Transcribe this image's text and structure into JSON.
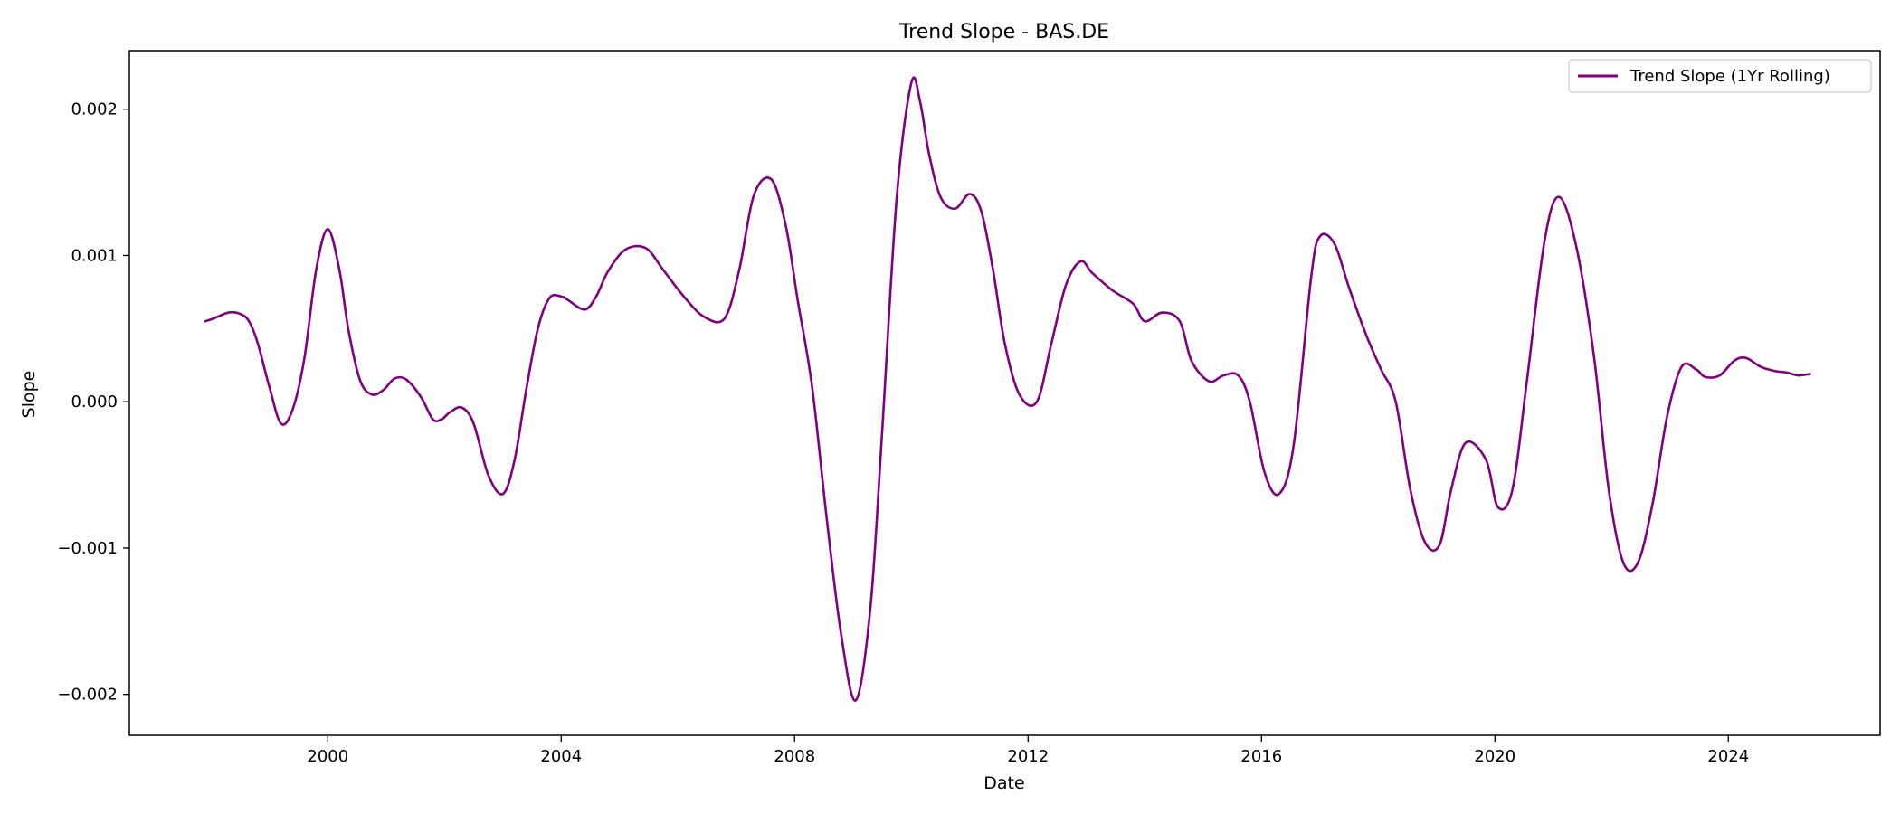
{
  "chart_data": {
    "type": "line",
    "title": "Trend Slope - BAS.DE",
    "xlabel": "Date",
    "ylabel": "Slope",
    "xlim": [
      1996.6,
      2026.6
    ],
    "ylim": [
      -0.00228,
      0.0024
    ],
    "x_ticks": [
      2000,
      2004,
      2008,
      2012,
      2016,
      2020,
      2024
    ],
    "x_tick_labels": [
      "2000",
      "2004",
      "2008",
      "2012",
      "2016",
      "2020",
      "2024"
    ],
    "y_ticks": [
      -0.002,
      -0.001,
      0.0,
      0.001,
      0.002
    ],
    "y_tick_labels": [
      "−0.002",
      "−0.001",
      "0.000",
      "0.001",
      "0.002"
    ],
    "grid": false,
    "legend_position": "top-right",
    "series": [
      {
        "name": "Trend Slope (1Yr Rolling)",
        "color": "#800080",
        "x": [
          1997.9,
          1998.05,
          1998.3,
          1998.5,
          1998.65,
          1998.8,
          1999.0,
          1999.2,
          1999.4,
          1999.6,
          1999.8,
          2000.0,
          2000.2,
          2000.35,
          2000.55,
          2000.75,
          2000.95,
          2001.15,
          2001.35,
          2001.6,
          2001.8,
          2001.95,
          2002.1,
          2002.3,
          2002.5,
          2002.75,
          2003.0,
          2003.2,
          2003.4,
          2003.6,
          2003.8,
          2004.0,
          2004.1,
          2004.4,
          2004.6,
          2004.8,
          2005.1,
          2005.45,
          2005.75,
          2006.1,
          2006.45,
          2006.8,
          2007.05,
          2007.3,
          2007.6,
          2007.85,
          2008.05,
          2008.3,
          2008.55,
          2008.8,
          2009.05,
          2009.3,
          2009.5,
          2009.75,
          2010.0,
          2010.15,
          2010.3,
          2010.5,
          2010.75,
          2011.0,
          2011.2,
          2011.4,
          2011.6,
          2011.85,
          2012.15,
          2012.4,
          2012.65,
          2012.9,
          2013.1,
          2013.45,
          2013.8,
          2014.0,
          2014.3,
          2014.6,
          2014.8,
          2015.1,
          2015.35,
          2015.6,
          2015.8,
          2016.05,
          2016.3,
          2016.55,
          2016.85,
          2017.0,
          2017.25,
          2017.5,
          2017.8,
          2018.05,
          2018.3,
          2018.55,
          2018.8,
          2019.05,
          2019.25,
          2019.5,
          2019.85,
          2020.05,
          2020.3,
          2020.55,
          2020.85,
          2021.1,
          2021.4,
          2021.7,
          2021.95,
          2022.2,
          2022.45,
          2022.7,
          2022.95,
          2023.2,
          2023.45,
          2023.6,
          2023.85,
          2024.1,
          2024.3,
          2024.55,
          2024.8,
          2025.0,
          2025.2,
          2025.4
        ],
        "values": [
          0.00055,
          0.00057,
          0.00061,
          0.0006,
          0.00055,
          0.0004,
          0.0001,
          -0.00015,
          -5e-05,
          0.0003,
          0.0009,
          0.00118,
          0.0009,
          0.0005,
          0.00015,
          5e-05,
          8e-05,
          0.00016,
          0.00015,
          3e-05,
          -0.00012,
          -0.00012,
          -7e-05,
          -4e-05,
          -0.00015,
          -0.0005,
          -0.00063,
          -0.0004,
          8e-05,
          0.0005,
          0.00071,
          0.00072,
          0.0007,
          0.00063,
          0.00072,
          0.00089,
          0.00104,
          0.00105,
          0.0009,
          0.00072,
          0.00058,
          0.00057,
          0.0009,
          0.00141,
          0.00152,
          0.0012,
          0.0007,
          0.0001,
          -0.0008,
          -0.0016,
          -0.00204,
          -0.0014,
          -0.0002,
          0.0014,
          0.00218,
          0.00205,
          0.0017,
          0.0014,
          0.00132,
          0.00142,
          0.0013,
          0.0009,
          0.0004,
          5e-05,
          0.0,
          0.0004,
          0.0008,
          0.00096,
          0.00088,
          0.00076,
          0.00067,
          0.00055,
          0.00061,
          0.00055,
          0.00028,
          0.00014,
          0.00018,
          0.00018,
          0.0,
          -0.00048,
          -0.00063,
          -0.0003,
          0.00085,
          0.00113,
          0.00108,
          0.00078,
          0.00045,
          0.00022,
          0.0,
          -0.0006,
          -0.00096,
          -0.00098,
          -0.0006,
          -0.00028,
          -0.0004,
          -0.00072,
          -0.0006,
          0.00015,
          0.0011,
          0.0014,
          0.00105,
          0.0003,
          -0.0006,
          -0.0011,
          -0.0011,
          -0.0007,
          -0.0001,
          0.00024,
          0.00022,
          0.00017,
          0.00018,
          0.00028,
          0.0003,
          0.00024,
          0.00021,
          0.0002,
          0.00018,
          0.00019
        ]
      }
    ]
  }
}
